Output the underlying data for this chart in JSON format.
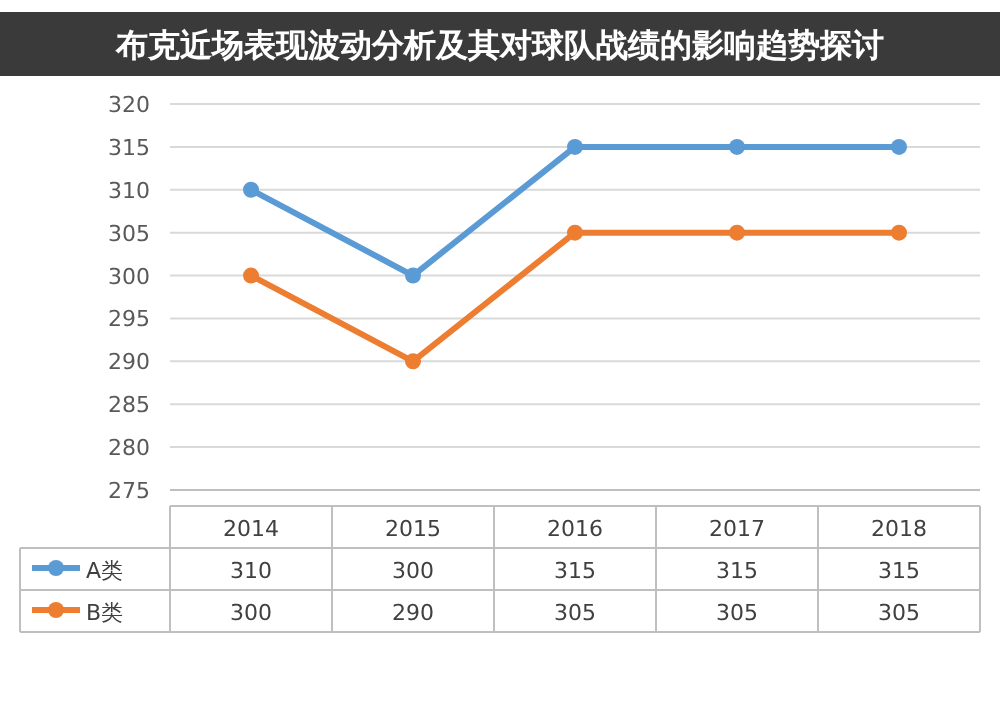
{
  "chart_data": {
    "type": "line",
    "title": "布克近场表现波动分析及其对球队战绩的影响趋势探讨",
    "categories": [
      "2014",
      "2015",
      "2016",
      "2017",
      "2018"
    ],
    "series": [
      {
        "name": "A类",
        "color": "#5b9bd5",
        "values": [
          310,
          300,
          315,
          315,
          315
        ]
      },
      {
        "name": "B类",
        "color": "#ed7d31",
        "values": [
          300,
          290,
          305,
          305,
          305
        ]
      }
    ],
    "ylim": [
      275,
      320
    ],
    "yticks": [
      275,
      280,
      285,
      290,
      295,
      300,
      305,
      310,
      315,
      320
    ],
    "grid": "y",
    "marker": "circle",
    "data_labels": true,
    "legend": "bottom"
  }
}
